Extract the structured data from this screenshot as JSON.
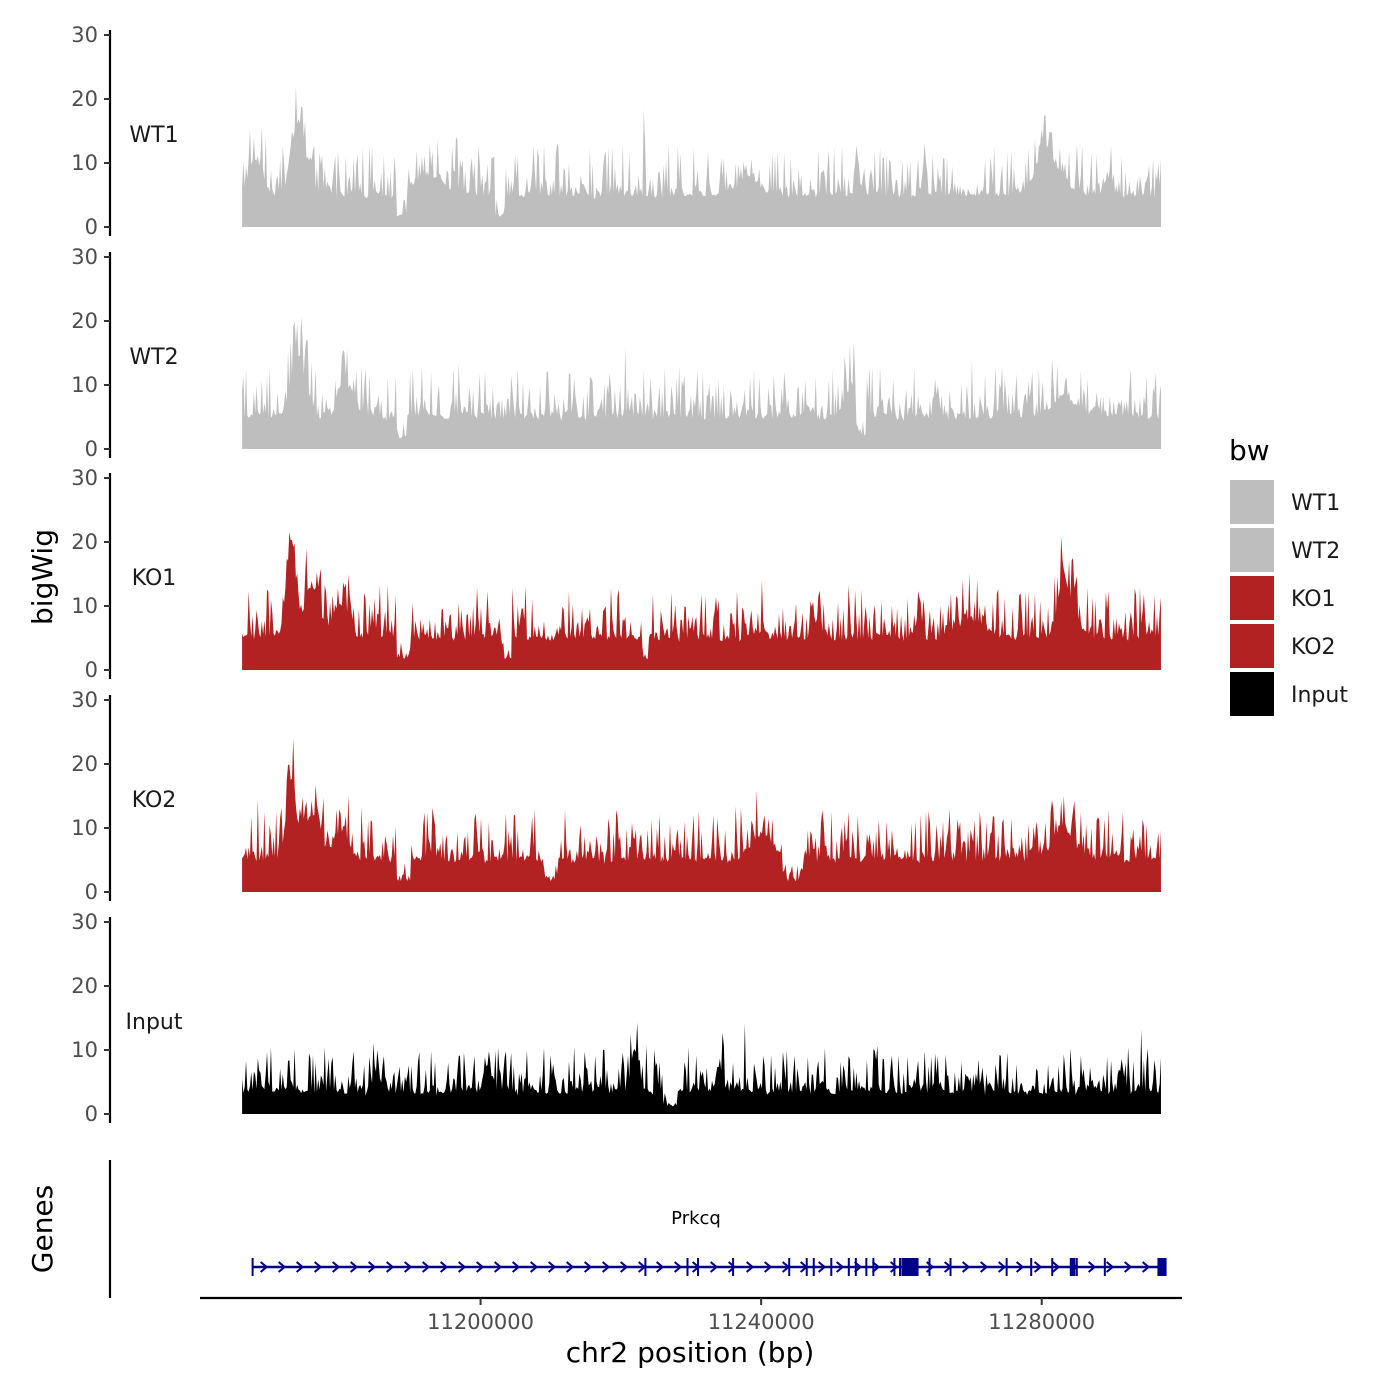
{
  "chart_data": {
    "type": "area",
    "title": "",
    "ylabel": "bigWig",
    "genes_label": "Genes",
    "xlabel": "chr2 position (bp)",
    "xlim": [
      11160000,
      11300000
    ],
    "x_ticks": [
      11200000,
      11240000,
      11280000
    ],
    "x_tick_labels": [
      "11200000",
      "11240000",
      "11280000"
    ],
    "ylim": [
      0,
      30
    ],
    "y_ticks": [
      0,
      10,
      20,
      30
    ],
    "y_tick_labels": [
      "0",
      "10",
      "20",
      "30"
    ],
    "data_range": [
      11166000,
      11297000
    ],
    "colors": {
      "grey": "#bebebe",
      "red": "#b22222",
      "black": "#000000",
      "gene": "#00008b"
    },
    "tracks": [
      {
        "name": "WT1",
        "color": "#bebebe",
        "baseline": 5,
        "noise": 5,
        "max": 24,
        "peaks": [
          [
            11174000,
            11,
            1400
          ],
          [
            11168000,
            5,
            1500
          ],
          [
            11193000,
            3,
            3000
          ],
          [
            11238000,
            3,
            2000
          ],
          [
            11281000,
            6,
            2500
          ]
        ],
        "lows": [
          [
            11188000,
            11189500
          ],
          [
            11202000,
            11203500
          ]
        ]
      },
      {
        "name": "WT2",
        "color": "#bebebe",
        "baseline": 5,
        "noise": 5,
        "max": 24,
        "peaks": [
          [
            11174000,
            10,
            1400
          ],
          [
            11181000,
            4,
            1500
          ],
          [
            11253000,
            5,
            1200
          ],
          [
            11283000,
            3,
            2500
          ]
        ],
        "lows": [
          [
            11188000,
            11189500
          ],
          [
            11253500,
            11255000
          ]
        ]
      },
      {
        "name": "KO1",
        "color": "#b22222",
        "baseline": 5,
        "noise": 5,
        "max": 30,
        "peaks": [
          [
            11173000,
            14,
            1000
          ],
          [
            11176000,
            8,
            1500
          ],
          [
            11180000,
            5,
            1500
          ],
          [
            11270000,
            3,
            2500
          ],
          [
            11283000,
            6,
            1000
          ],
          [
            11284000,
            4,
            2000
          ]
        ],
        "lows": [
          [
            11188000,
            11190000
          ],
          [
            11203000,
            11204500
          ],
          [
            11223000,
            11224000
          ]
        ]
      },
      {
        "name": "KO2",
        "color": "#b22222",
        "baseline": 5,
        "noise": 5,
        "max": 24,
        "peaks": [
          [
            11173000,
            13,
            1000
          ],
          [
            11176000,
            7,
            1500
          ],
          [
            11180000,
            4,
            1500
          ],
          [
            11240000,
            4,
            2000
          ],
          [
            11283000,
            5,
            2000
          ]
        ],
        "lows": [
          [
            11188000,
            11190000
          ],
          [
            11209000,
            11211000
          ],
          [
            11243000,
            11246000
          ]
        ]
      },
      {
        "name": "Input",
        "color": "#000000",
        "baseline": 3.5,
        "noise": 4.5,
        "max": 16,
        "peaks": [
          [
            11185000,
            3,
            600
          ],
          [
            11201000,
            4,
            700
          ],
          [
            11222000,
            7,
            700
          ],
          [
            11234000,
            4,
            600
          ]
        ],
        "lows": [
          [
            11226000,
            11228000
          ]
        ]
      }
    ],
    "legend": {
      "title": "bw",
      "entries": [
        {
          "label": "WT1",
          "color": "#bebebe"
        },
        {
          "label": "WT2",
          "color": "#bebebe"
        },
        {
          "label": "KO1",
          "color": "#b22222"
        },
        {
          "label": "KO2",
          "color": "#b22222"
        },
        {
          "label": "Input",
          "color": "#000000"
        }
      ]
    },
    "gene": {
      "name": "Prkcq",
      "start": 11167500,
      "end": 11297500,
      "strand": "+",
      "color": "#00008b",
      "exons": [
        11167500,
        11223500,
        11229500,
        11231000,
        11236000,
        11244000,
        11246500,
        11247500,
        11250000,
        11252500,
        11253500,
        11255000,
        11256000,
        11259000,
        11259800,
        11260600,
        11261400,
        11262300,
        11264000,
        11267000,
        11275000,
        11278500,
        11281500,
        11285000,
        11289000,
        11296800,
        11297500
      ],
      "big_exons": [
        [
          11260000,
          11262300
        ],
        [
          11284000,
          11284800
        ],
        [
          11296500,
          11297800
        ]
      ]
    }
  }
}
